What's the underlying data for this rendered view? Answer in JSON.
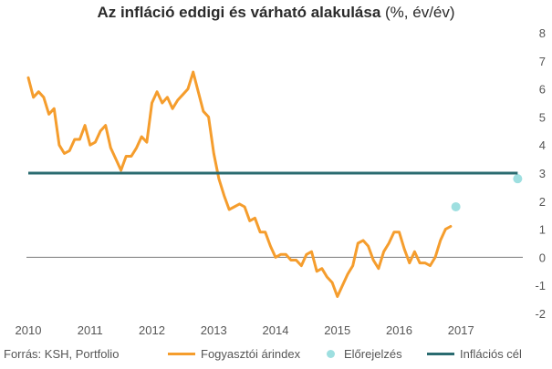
{
  "chart_data": {
    "type": "line",
    "title_bold": "Az infláció eddigi és várható alakulása",
    "title_unit": " (%, év/év)",
    "xlabel": "",
    "ylabel": "",
    "xlim": [
      2010,
      2018
    ],
    "ylim": [
      -2,
      8
    ],
    "x_ticks": [
      "2010",
      "2011",
      "2012",
      "2013",
      "2014",
      "2015",
      "2016",
      "2017"
    ],
    "y_ticks": [
      "8",
      "7",
      "6",
      "5",
      "4",
      "3",
      "2",
      "1",
      "0",
      "-1",
      "-2"
    ],
    "series": [
      {
        "name": "Fogyasztói árindex",
        "color": "#f59d2d",
        "x": [
          2010.0,
          2010.083,
          2010.167,
          2010.25,
          2010.333,
          2010.417,
          2010.5,
          2010.583,
          2010.667,
          2010.75,
          2010.833,
          2010.917,
          2011.0,
          2011.083,
          2011.167,
          2011.25,
          2011.333,
          2011.417,
          2011.5,
          2011.583,
          2011.667,
          2011.75,
          2011.833,
          2011.917,
          2012.0,
          2012.083,
          2012.167,
          2012.25,
          2012.333,
          2012.417,
          2012.5,
          2012.583,
          2012.667,
          2012.75,
          2012.833,
          2012.917,
          2013.0,
          2013.083,
          2013.167,
          2013.25,
          2013.333,
          2013.417,
          2013.5,
          2013.583,
          2013.667,
          2013.75,
          2013.833,
          2013.917,
          2014.0,
          2014.083,
          2014.167,
          2014.25,
          2014.333,
          2014.417,
          2014.5,
          2014.583,
          2014.667,
          2014.75,
          2014.833,
          2014.917,
          2015.0,
          2015.083,
          2015.167,
          2015.25,
          2015.333,
          2015.417,
          2015.5,
          2015.583,
          2015.667,
          2015.75,
          2015.833,
          2015.917,
          2016.0,
          2016.083,
          2016.167,
          2016.25,
          2016.333,
          2016.417,
          2016.5,
          2016.583,
          2016.667,
          2016.75,
          2016.833
        ],
        "values": [
          6.4,
          5.7,
          5.9,
          5.7,
          5.1,
          5.3,
          4.0,
          3.7,
          3.8,
          4.2,
          4.2,
          4.7,
          4.0,
          4.1,
          4.5,
          4.7,
          3.9,
          3.5,
          3.1,
          3.6,
          3.6,
          3.9,
          4.3,
          4.1,
          5.5,
          5.9,
          5.5,
          5.7,
          5.3,
          5.6,
          5.8,
          6.0,
          6.6,
          5.9,
          5.2,
          5.0,
          3.7,
          2.8,
          2.2,
          1.7,
          1.8,
          1.9,
          1.8,
          1.3,
          1.4,
          0.9,
          0.9,
          0.4,
          0.0,
          0.1,
          0.1,
          -0.1,
          -0.1,
          -0.3,
          0.1,
          0.2,
          -0.5,
          -0.4,
          -0.7,
          -0.9,
          -1.4,
          -1.0,
          -0.6,
          -0.3,
          0.5,
          0.6,
          0.4,
          -0.1,
          -0.4,
          0.2,
          0.5,
          0.9,
          0.9,
          0.3,
          -0.2,
          0.2,
          -0.2,
          -0.2,
          -0.3,
          0.0,
          0.6,
          1.0,
          1.1
        ]
      },
      {
        "name": "Előrejelzés",
        "color": "#9edfe0",
        "x": [
          2016.917,
          2017.917
        ],
        "values": [
          1.8,
          2.8
        ]
      },
      {
        "name": "Inflációs cél",
        "color": "#2a6b70",
        "x": [
          2010.0,
          2017.917
        ],
        "values": [
          3.0,
          3.0
        ]
      }
    ]
  },
  "footer": {
    "source": "Forrás: KSH, Portfolio"
  },
  "legend": [
    {
      "label": "Fogyasztói árindex",
      "color": "#f59d2d",
      "kind": "line"
    },
    {
      "label": "Előrejelzés",
      "color": "#9edfe0",
      "kind": "dot"
    },
    {
      "label": "Inflációs cél",
      "color": "#2a6b70",
      "kind": "line"
    }
  ]
}
